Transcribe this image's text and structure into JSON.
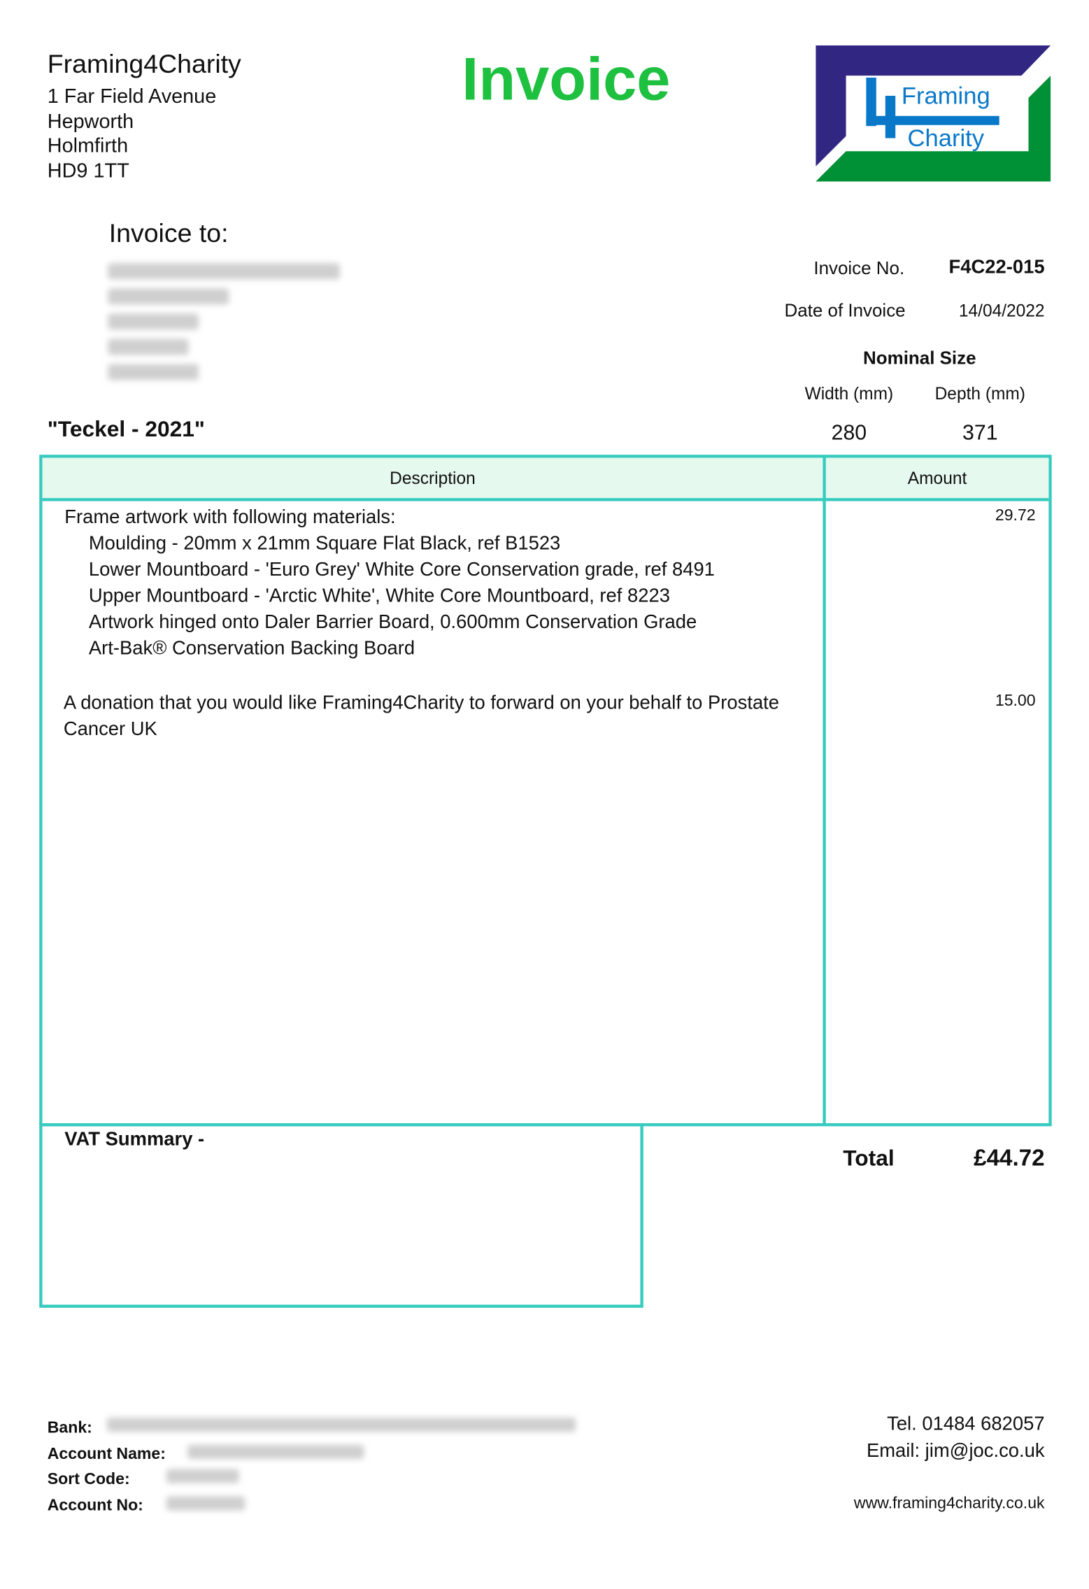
{
  "company": {
    "name": "Framing4Charity",
    "address": [
      "1 Far Field Avenue",
      "Hepworth",
      "Holmfirth",
      "HD9 1TT"
    ]
  },
  "title": "Invoice",
  "logo": {
    "line1": "Framing",
    "line2": "Charity",
    "colors": {
      "navy": "#312783",
      "green": "#009036",
      "blue": "#0a78c8"
    }
  },
  "invoice_to_label": "Invoice to:",
  "invoice": {
    "number_label": "Invoice No.",
    "number": "F4C22-015",
    "date_label": "Date of Invoice",
    "date": "14/04/2022"
  },
  "nominal_size": {
    "label": "Nominal Size",
    "width_label": "Width (mm)",
    "depth_label": "Depth (mm)",
    "width": "280",
    "depth": "371"
  },
  "artwork_title": "\"Teckel - 2021\"",
  "table": {
    "headers": {
      "description": "Description",
      "amount": "Amount"
    },
    "items": [
      {
        "lines": [
          "Frame artwork with following materials:"
        ],
        "sublines": [
          "Moulding - 20mm x 21mm Square Flat Black, ref B1523",
          "Lower Mountboard -  'Euro Grey' White Core Conservation grade, ref 8491",
          "Upper Mountboard - 'Arctic White', White Core Mountboard, ref 8223",
          "Artwork hinged onto Daler Barrier Board, 0.600mm Conservation Grade",
          "Art-Bak®  Conservation Backing Board"
        ],
        "amount": "29.72"
      },
      {
        "lines": [
          "A donation that you would like Framing4Charity to forward on your behalf to Prostate",
          "Cancer UK"
        ],
        "amount": "15.00"
      }
    ]
  },
  "vat_label": "VAT Summary -",
  "total": {
    "label": "Total",
    "value": "£44.72"
  },
  "footer": {
    "bank_label": "Bank:",
    "account_name_label": "Account Name:",
    "sort_code_label": "Sort Code:",
    "account_no_label": "Account No:",
    "tel": "Tel.  01484 682057",
    "email": "Email: jim@joc.co.uk",
    "website": "www.framing4charity.co.uk"
  },
  "colors": {
    "title_green": "#1ec040",
    "table_border": "#36cbbf",
    "header_bg": "#e6f9ee"
  }
}
